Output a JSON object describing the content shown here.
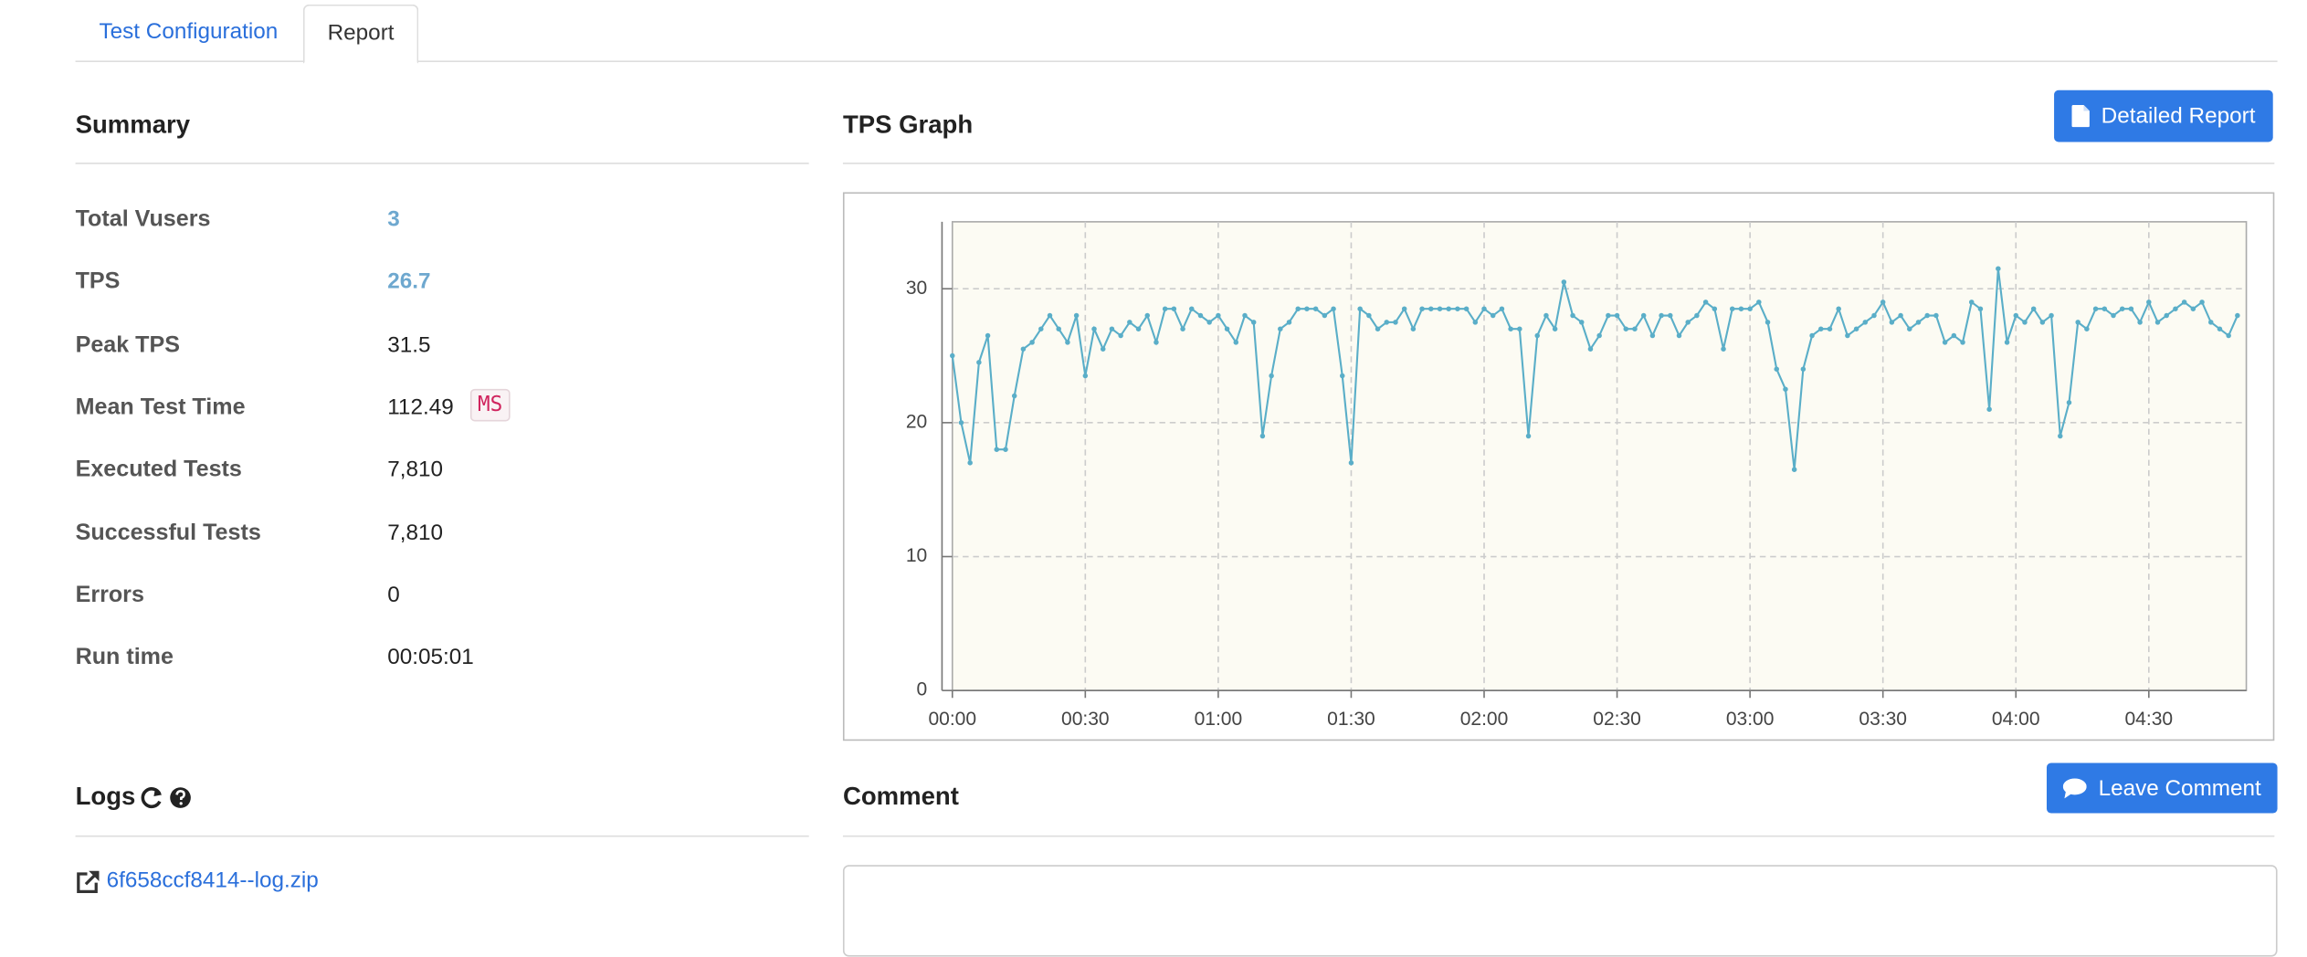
{
  "tabs": [
    "Test Configuration",
    "Report"
  ],
  "summary": {
    "title": "Summary",
    "rows": [
      {
        "label": "Total Vusers",
        "value": "3"
      },
      {
        "label": "TPS",
        "value": "26.7"
      },
      {
        "label": "Peak TPS",
        "value": "31.5"
      },
      {
        "label": "Mean Test Time",
        "value": "112.49",
        "unit": "MS"
      },
      {
        "label": "Executed Tests",
        "value": "7,810"
      },
      {
        "label": "Successful Tests",
        "value": "7,810"
      },
      {
        "label": "Errors",
        "value": "0"
      },
      {
        "label": "Run time",
        "value": "00:05:01"
      }
    ]
  },
  "buttons": {
    "detailed_report": "Detailed Report",
    "leave_comment": "Leave Comment"
  },
  "logs": {
    "title": "Logs",
    "file": "6f658ccf8414--log.zip"
  },
  "comment": {
    "title": "Comment"
  },
  "chart_data": {
    "type": "line",
    "title": "TPS Graph",
    "color": "#5aaec8",
    "grid": true,
    "x": [
      0,
      2,
      4,
      6,
      8,
      10,
      12,
      14,
      16,
      18,
      20,
      22,
      24,
      26,
      28,
      30,
      32,
      34,
      36,
      38,
      40,
      42,
      44,
      46,
      48,
      50,
      52,
      54,
      56,
      58,
      60,
      62,
      64,
      66,
      68,
      70,
      72,
      74,
      76,
      78,
      80,
      82,
      84,
      86,
      88,
      90,
      92,
      94,
      96,
      98,
      100,
      102,
      104,
      106,
      108,
      110,
      112,
      114,
      116,
      118,
      120,
      122,
      124,
      126,
      128,
      130,
      132,
      134,
      136,
      138,
      140,
      142,
      144,
      146,
      148,
      150,
      152,
      154,
      156,
      158,
      160,
      162,
      164,
      166,
      168,
      170,
      172,
      174,
      176,
      178,
      180,
      182,
      184,
      186,
      188,
      190,
      192,
      194,
      196,
      198,
      200,
      202,
      204,
      206,
      208,
      210,
      212,
      214,
      216,
      218,
      220,
      222,
      224,
      226,
      228,
      230,
      232,
      234,
      236,
      238,
      240,
      242,
      244,
      246,
      248,
      250,
      252,
      254,
      256,
      258,
      260,
      262,
      264,
      266,
      268,
      270,
      272,
      274,
      276,
      278,
      280,
      282,
      284,
      286,
      288,
      290
    ],
    "values": [
      25,
      20,
      17,
      24.5,
      26.5,
      18,
      18,
      22,
      25.5,
      26,
      27,
      28,
      27,
      26,
      28,
      23.5,
      27,
      25.5,
      27,
      26.5,
      27.5,
      27,
      28,
      26,
      28.5,
      28.5,
      27,
      28.5,
      28,
      27.5,
      28,
      27,
      26,
      28,
      27.5,
      19,
      23.5,
      27,
      27.5,
      28.5,
      28.5,
      28.5,
      28,
      28.5,
      23.5,
      17,
      28.5,
      28,
      27,
      27.5,
      27.5,
      28.5,
      27,
      28.5,
      28.5,
      28.5,
      28.5,
      28.5,
      28.5,
      27.5,
      28.5,
      28,
      28.5,
      27,
      27,
      19,
      26.5,
      28,
      27,
      30.5,
      28,
      27.5,
      25.5,
      26.5,
      28,
      28,
      27,
      27,
      28,
      26.5,
      28,
      28,
      26.5,
      27.5,
      28,
      29,
      28.5,
      25.5,
      28.5,
      28.5,
      28.5,
      29,
      27.5,
      24,
      22.5,
      16.5,
      24,
      26.5,
      27,
      27,
      28.5,
      26.5,
      27,
      27.5,
      28,
      29,
      27.5,
      28,
      27,
      27.5,
      28,
      28,
      26,
      26.5,
      26,
      29,
      28.5,
      21,
      31.5,
      26,
      28,
      27.5,
      28.5,
      27.5,
      28,
      19,
      21.5,
      27.5,
      27,
      28.5,
      28.5,
      28,
      28.5,
      28.5,
      27.5,
      29,
      27.5,
      28,
      28.5,
      29,
      28.5,
      29,
      27.5,
      27,
      26.5,
      28
    ],
    "xlim": [
      0,
      292
    ],
    "ylim": [
      0,
      35
    ],
    "xticks": [
      {
        "value": 0,
        "label": "00:00"
      },
      {
        "value": 30,
        "label": "00:30"
      },
      {
        "value": 60,
        "label": "01:00"
      },
      {
        "value": 90,
        "label": "01:30"
      },
      {
        "value": 120,
        "label": "02:00"
      },
      {
        "value": 150,
        "label": "02:30"
      },
      {
        "value": 180,
        "label": "03:00"
      },
      {
        "value": 210,
        "label": "03:30"
      },
      {
        "value": 240,
        "label": "04:00"
      },
      {
        "value": 270,
        "label": "04:30"
      }
    ],
    "yticks": [
      0,
      10,
      20,
      30
    ]
  }
}
